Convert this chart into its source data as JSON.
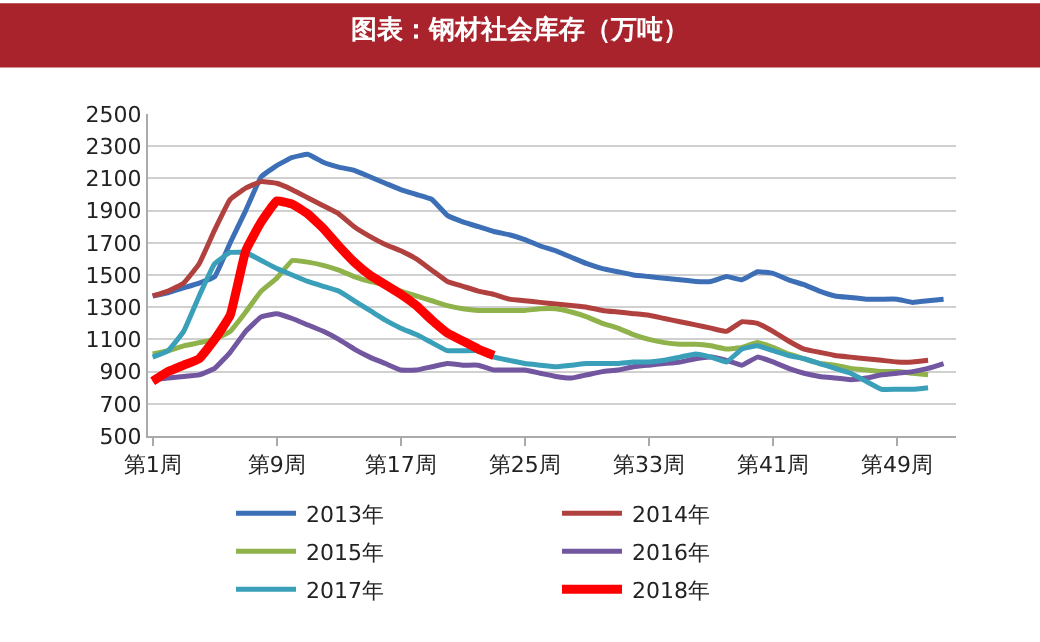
{
  "chart_data": {
    "type": "line",
    "title": "图表：钢材社会库存（万吨）",
    "categories": [
      "第1周",
      null,
      null,
      null,
      null,
      null,
      null,
      null,
      "第9周",
      null,
      null,
      null,
      null,
      null,
      null,
      null,
      "第17周",
      null,
      null,
      null,
      null,
      null,
      null,
      null,
      "第25周",
      null,
      null,
      null,
      null,
      null,
      null,
      null,
      "第33周",
      null,
      null,
      null,
      null,
      null,
      null,
      null,
      "第41周",
      null,
      null,
      null,
      null,
      null,
      null,
      null,
      "第49周",
      null,
      null,
      null
    ],
    "ylim": [
      500,
      2500
    ],
    "yticks": [
      500,
      700,
      900,
      1100,
      1300,
      1500,
      1700,
      1900,
      2100,
      2300,
      2500
    ],
    "grid": "y",
    "legend": "bottom",
    "marker": "none",
    "line_style": "solid",
    "series": [
      {
        "name": "2013年",
        "color": "#3d6fb6",
        "values": [
          1370,
          1390,
          1420,
          1450,
          1490,
          1700,
          1900,
          2110,
          2180,
          2230,
          2250,
          2200,
          2170,
          2150,
          2110,
          2070,
          2030,
          2000,
          1970,
          1870,
          1830,
          1800,
          1770,
          1750,
          1720,
          1680,
          1650,
          1610,
          1570,
          1540,
          1520,
          1500,
          1490,
          1480,
          1470,
          1460,
          1460,
          1490,
          1470,
          1520,
          1510,
          1470,
          1440,
          1400,
          1370,
          1360,
          1350,
          1350,
          1350,
          1330,
          1340,
          1350
        ]
      },
      {
        "name": "2014年",
        "color": "#b0413e",
        "values": [
          1370,
          1400,
          1450,
          1570,
          1780,
          1970,
          2040,
          2080,
          2070,
          2030,
          1980,
          1930,
          1880,
          1800,
          1740,
          1690,
          1650,
          1600,
          1530,
          1460,
          1430,
          1400,
          1380,
          1350,
          1340,
          1330,
          1320,
          1310,
          1300,
          1280,
          1270,
          1260,
          1250,
          1230,
          1210,
          1190,
          1170,
          1150,
          1210,
          1200,
          1150,
          1090,
          1040,
          1020,
          1000,
          990,
          980,
          970,
          960,
          960,
          970,
          null
        ]
      },
      {
        "name": "2015年",
        "color": "#8fb24a",
        "values": [
          1010,
          1030,
          1060,
          1080,
          1100,
          1150,
          1270,
          1400,
          1480,
          1590,
          1580,
          1560,
          1530,
          1490,
          1460,
          1440,
          1400,
          1370,
          1340,
          1310,
          1290,
          1280,
          1280,
          1280,
          1280,
          1290,
          1290,
          1270,
          1240,
          1200,
          1170,
          1130,
          1100,
          1080,
          1070,
          1070,
          1060,
          1040,
          1050,
          1080,
          1050,
          1010,
          980,
          950,
          940,
          920,
          910,
          900,
          900,
          890,
          880,
          null
        ]
      },
      {
        "name": "2016年",
        "color": "#7356a0",
        "values": [
          850,
          860,
          870,
          880,
          920,
          1020,
          1150,
          1240,
          1260,
          1230,
          1190,
          1150,
          1100,
          1040,
          990,
          950,
          910,
          910,
          930,
          950,
          940,
          940,
          910,
          910,
          910,
          890,
          870,
          860,
          880,
          900,
          910,
          930,
          940,
          950,
          960,
          980,
          990,
          970,
          940,
          990,
          960,
          920,
          890,
          870,
          860,
          850,
          860,
          880,
          890,
          900,
          920,
          950
        ]
      },
      {
        "name": "2017年",
        "color": "#3aa0b9",
        "values": [
          990,
          1030,
          1150,
          1370,
          1570,
          1640,
          1640,
          1590,
          1540,
          1500,
          1460,
          1430,
          1400,
          1340,
          1280,
          1220,
          1170,
          1130,
          1080,
          1030,
          1030,
          1030,
          990,
          970,
          950,
          940,
          930,
          940,
          950,
          950,
          950,
          960,
          960,
          970,
          990,
          1010,
          990,
          960,
          1040,
          1060,
          1030,
          1000,
          980,
          950,
          920,
          890,
          840,
          790,
          790,
          790,
          800,
          null
        ]
      },
      {
        "name": "2018年",
        "color": "#ff0000",
        "values": [
          840,
          900,
          940,
          980,
          1100,
          1250,
          1650,
          1830,
          1960,
          1940,
          1880,
          1790,
          1680,
          1580,
          1500,
          1440,
          1380,
          1310,
          1220,
          1140,
          1090,
          1040,
          1000,
          null,
          null,
          null,
          null,
          null,
          null,
          null,
          null,
          null,
          null,
          null,
          null,
          null,
          null,
          null,
          null,
          null,
          null,
          null,
          null,
          null,
          null,
          null,
          null,
          null,
          null,
          null,
          null,
          null
        ]
      }
    ]
  }
}
